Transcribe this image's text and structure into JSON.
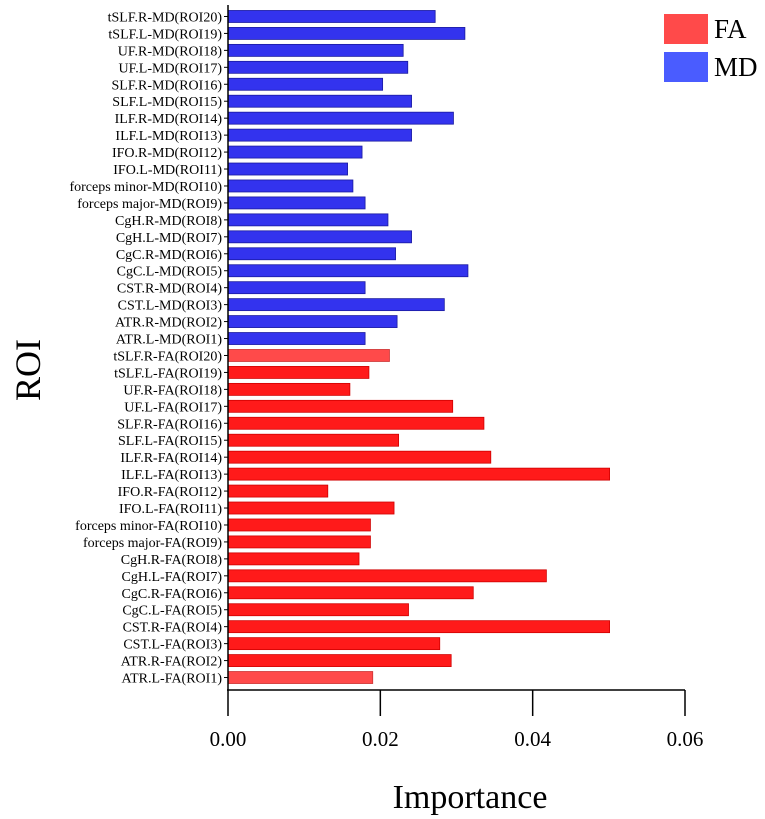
{
  "chart_data": {
    "type": "bar",
    "orientation": "horizontal",
    "title": "",
    "xlabel": "Importance",
    "ylabel": "ROI",
    "xlim": [
      0,
      0.06
    ],
    "xticks": [
      0.0,
      0.02,
      0.04,
      0.06
    ],
    "xtick_labels": [
      "0.00",
      "0.02",
      "0.04",
      "0.06"
    ],
    "grid": false,
    "legend_position": "top-right",
    "legend": [
      {
        "name": "FA",
        "color": "#ff4a4a"
      },
      {
        "name": "MD",
        "color": "#4a5cff"
      }
    ],
    "colors": {
      "FA": "#ff1a1a",
      "FA_light": "#ff4a4a",
      "MD": "#3333ee",
      "MD_light": "#5a6aff"
    },
    "bars": [
      {
        "label": "tSLF.R-MD(ROI20)",
        "value": 0.0272,
        "group": "MD"
      },
      {
        "label": "tSLF.L-MD(ROI19)",
        "value": 0.0311,
        "group": "MD"
      },
      {
        "label": "UF.R-MD(ROI18)",
        "value": 0.023,
        "group": "MD"
      },
      {
        "label": "UF.L-MD(ROI17)",
        "value": 0.0236,
        "group": "MD"
      },
      {
        "label": "SLF.R-MD(ROI16)",
        "value": 0.0203,
        "group": "MD"
      },
      {
        "label": "SLF.L-MD(ROI15)",
        "value": 0.0241,
        "group": "MD"
      },
      {
        "label": "ILF.R-MD(ROI14)",
        "value": 0.0296,
        "group": "MD"
      },
      {
        "label": "ILF.L-MD(ROI13)",
        "value": 0.0241,
        "group": "MD"
      },
      {
        "label": "IFO.R-MD(ROI12)",
        "value": 0.0176,
        "group": "MD"
      },
      {
        "label": "IFO.L-MD(ROI11)",
        "value": 0.0157,
        "group": "MD"
      },
      {
        "label": "forceps minor-MD(ROI10)",
        "value": 0.0164,
        "group": "MD"
      },
      {
        "label": "forceps major-MD(ROI9)",
        "value": 0.018,
        "group": "MD"
      },
      {
        "label": "CgH.R-MD(ROI8)",
        "value": 0.021,
        "group": "MD"
      },
      {
        "label": "CgH.L-MD(ROI7)",
        "value": 0.0241,
        "group": "MD"
      },
      {
        "label": "CgC.R-MD(ROI6)",
        "value": 0.022,
        "group": "MD"
      },
      {
        "label": "CgC.L-MD(ROI5)",
        "value": 0.0315,
        "group": "MD"
      },
      {
        "label": "CST.R-MD(ROI4)",
        "value": 0.018,
        "group": "MD"
      },
      {
        "label": "CST.L-MD(ROI3)",
        "value": 0.0284,
        "group": "MD"
      },
      {
        "label": "ATR.R-MD(ROI2)",
        "value": 0.0222,
        "group": "MD"
      },
      {
        "label": "ATR.L-MD(ROI1)",
        "value": 0.018,
        "group": "MD"
      },
      {
        "label": "tSLF.R-FA(ROI20)",
        "value": 0.0212,
        "group": "FA",
        "light": true
      },
      {
        "label": "tSLF.L-FA(ROI19)",
        "value": 0.0185,
        "group": "FA"
      },
      {
        "label": "UF.R-FA(ROI18)",
        "value": 0.016,
        "group": "FA"
      },
      {
        "label": "UF.L-FA(ROI17)",
        "value": 0.0295,
        "group": "FA"
      },
      {
        "label": "SLF.R-FA(ROI16)",
        "value": 0.0336,
        "group": "FA"
      },
      {
        "label": "SLF.L-FA(ROI15)",
        "value": 0.0224,
        "group": "FA"
      },
      {
        "label": "ILF.R-FA(ROI14)",
        "value": 0.0345,
        "group": "FA"
      },
      {
        "label": "ILF.L-FA(ROI13)",
        "value": 0.0501,
        "group": "FA"
      },
      {
        "label": "IFO.R-FA(ROI12)",
        "value": 0.0131,
        "group": "FA"
      },
      {
        "label": "IFO.L-FA(ROI11)",
        "value": 0.0218,
        "group": "FA"
      },
      {
        "label": "forceps minor-FA(ROI10)",
        "value": 0.0187,
        "group": "FA"
      },
      {
        "label": "forceps major-FA(ROI9)",
        "value": 0.0187,
        "group": "FA"
      },
      {
        "label": "CgH.R-FA(ROI8)",
        "value": 0.0172,
        "group": "FA"
      },
      {
        "label": "CgH.L-FA(ROI7)",
        "value": 0.0418,
        "group": "FA"
      },
      {
        "label": "CgC.R-FA(ROI6)",
        "value": 0.0322,
        "group": "FA"
      },
      {
        "label": "CgC.L-FA(ROI5)",
        "value": 0.0237,
        "group": "FA"
      },
      {
        "label": "CST.R-FA(ROI4)",
        "value": 0.0501,
        "group": "FA"
      },
      {
        "label": "CST.L-FA(ROI3)",
        "value": 0.0278,
        "group": "FA"
      },
      {
        "label": "ATR.R-FA(ROI2)",
        "value": 0.0293,
        "group": "FA"
      },
      {
        "label": "ATR.L-FA(ROI1)",
        "value": 0.019,
        "group": "FA",
        "light": true
      }
    ]
  }
}
